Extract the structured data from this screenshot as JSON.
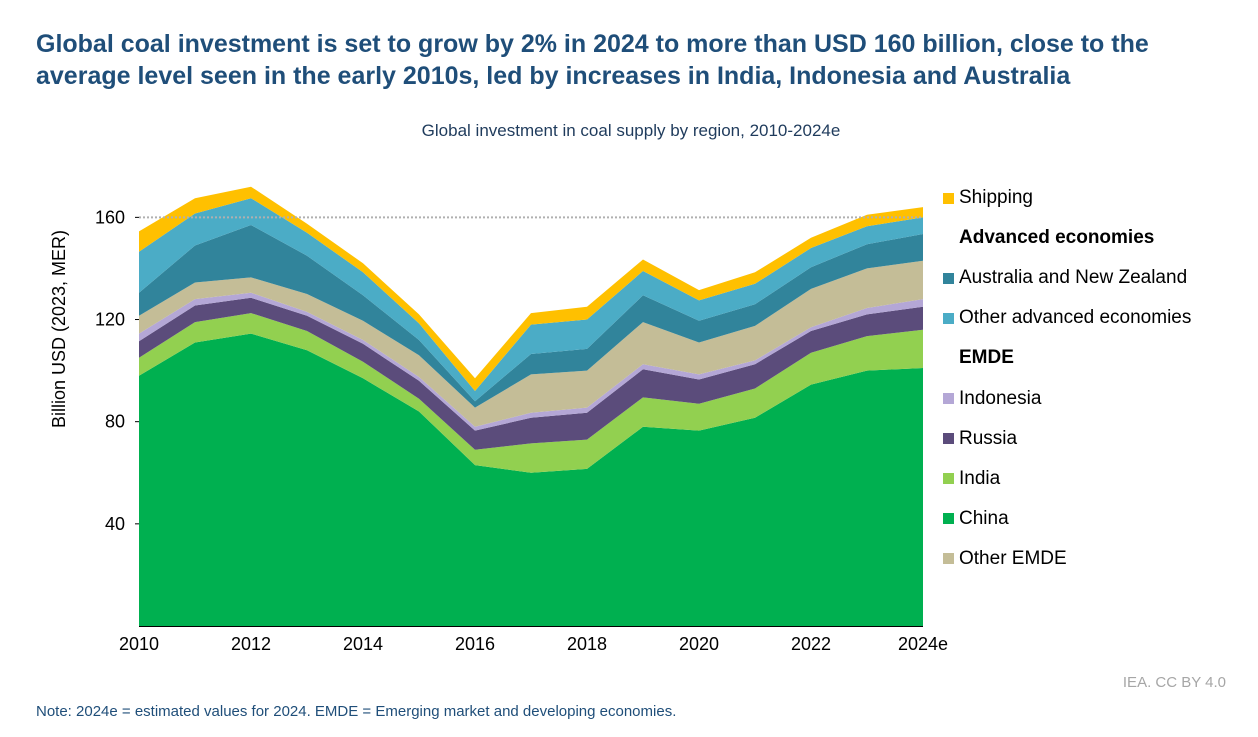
{
  "headline": "Global coal investment is set to grow by 2% in 2024 to more than USD 160 billion, close to the average level seen in the early 2010s, led by increases in India, Indonesia and Australia",
  "source": "IEA. CC BY 4.0",
  "note": "Note: 2024e = estimated values for 2024. EMDE = Emerging market and developing economies.",
  "chart_data": {
    "type": "area",
    "stacked": true,
    "title": "Global investment in coal supply by region, 2010-2024e",
    "ylabel": "Billion USD (2023, MER)",
    "xlabel": "",
    "ylim": [
      0,
      175
    ],
    "yticks": [
      40,
      80,
      120,
      160
    ],
    "reference_line": 160,
    "grid": false,
    "legend_position": "right",
    "x": [
      "2010",
      "2011",
      "2012",
      "2013",
      "2014",
      "2015",
      "2016",
      "2017",
      "2018",
      "2019",
      "2020",
      "2021",
      "2022",
      "2023",
      "2024e"
    ],
    "xtick_labels": [
      "2010",
      "2012",
      "2014",
      "2016",
      "2018",
      "2020",
      "2022",
      "2024e"
    ],
    "series": [
      {
        "name": "China",
        "color": "#00b050",
        "values": [
          98,
          111,
          114.5,
          108,
          97,
          84,
          63,
          60,
          61.5,
          78,
          76.5,
          81.5,
          94.5,
          100,
          101
        ]
      },
      {
        "name": "India",
        "color": "#92d050",
        "values": [
          7,
          8,
          8,
          7.5,
          6.5,
          5,
          6,
          11.5,
          11.5,
          11.5,
          10.5,
          11.5,
          12.5,
          13.5,
          15
        ]
      },
      {
        "name": "Russia",
        "color": "#5b4c7b",
        "values": [
          6.5,
          6.5,
          6,
          6,
          7,
          7,
          7.5,
          10,
          10.5,
          11,
          9.5,
          9.5,
          8.5,
          8.5,
          9
        ]
      },
      {
        "name": "Indonesia",
        "color": "#b4a7d6",
        "values": [
          3,
          2.5,
          2,
          1.5,
          1.5,
          1.5,
          1.5,
          2,
          2,
          2,
          2,
          1.5,
          1.5,
          2.5,
          3
        ]
      },
      {
        "name": "Other EMDE",
        "color": "#c4bd97",
        "values": [
          7,
          6.5,
          6,
          7,
          7.5,
          8.5,
          7.5,
          15,
          14.5,
          16.5,
          12.5,
          13.5,
          15,
          15.5,
          15
        ]
      },
      {
        "name": "Australia and New Zealand",
        "color": "#31849b",
        "values": [
          9,
          14.5,
          20.5,
          15,
          10,
          6,
          2.5,
          8,
          8.5,
          10.5,
          8.5,
          8.5,
          8.5,
          9.5,
          10.5
        ]
      },
      {
        "name": "Other advanced economies",
        "color": "#4bacc6",
        "values": [
          16,
          12.5,
          10.5,
          9,
          9,
          6.5,
          4,
          11.5,
          11.5,
          9.5,
          8,
          8,
          7.5,
          7,
          6.5
        ]
      },
      {
        "name": "Shipping",
        "color": "#ffc000",
        "values": [
          8,
          6,
          4.5,
          3.5,
          3.5,
          3.5,
          5,
          4.5,
          5,
          4.5,
          4,
          4.5,
          4,
          4.5,
          4
        ]
      }
    ],
    "legend": [
      {
        "type": "item",
        "label": "Shipping",
        "color": "#ffc000"
      },
      {
        "type": "header",
        "label": "Advanced economies"
      },
      {
        "type": "item",
        "label": "Australia and New Zealand",
        "color": "#31849b"
      },
      {
        "type": "item",
        "label": "Other advanced economies",
        "color": "#4bacc6"
      },
      {
        "type": "header",
        "label": "EMDE"
      },
      {
        "type": "item",
        "label": "Indonesia",
        "color": "#b4a7d6"
      },
      {
        "type": "item",
        "label": "Russia",
        "color": "#5b4c7b"
      },
      {
        "type": "item",
        "label": "India",
        "color": "#92d050"
      },
      {
        "type": "item",
        "label": "China",
        "color": "#00b050"
      },
      {
        "type": "item",
        "label": "Other EMDE",
        "color": "#c4bd97"
      }
    ]
  }
}
